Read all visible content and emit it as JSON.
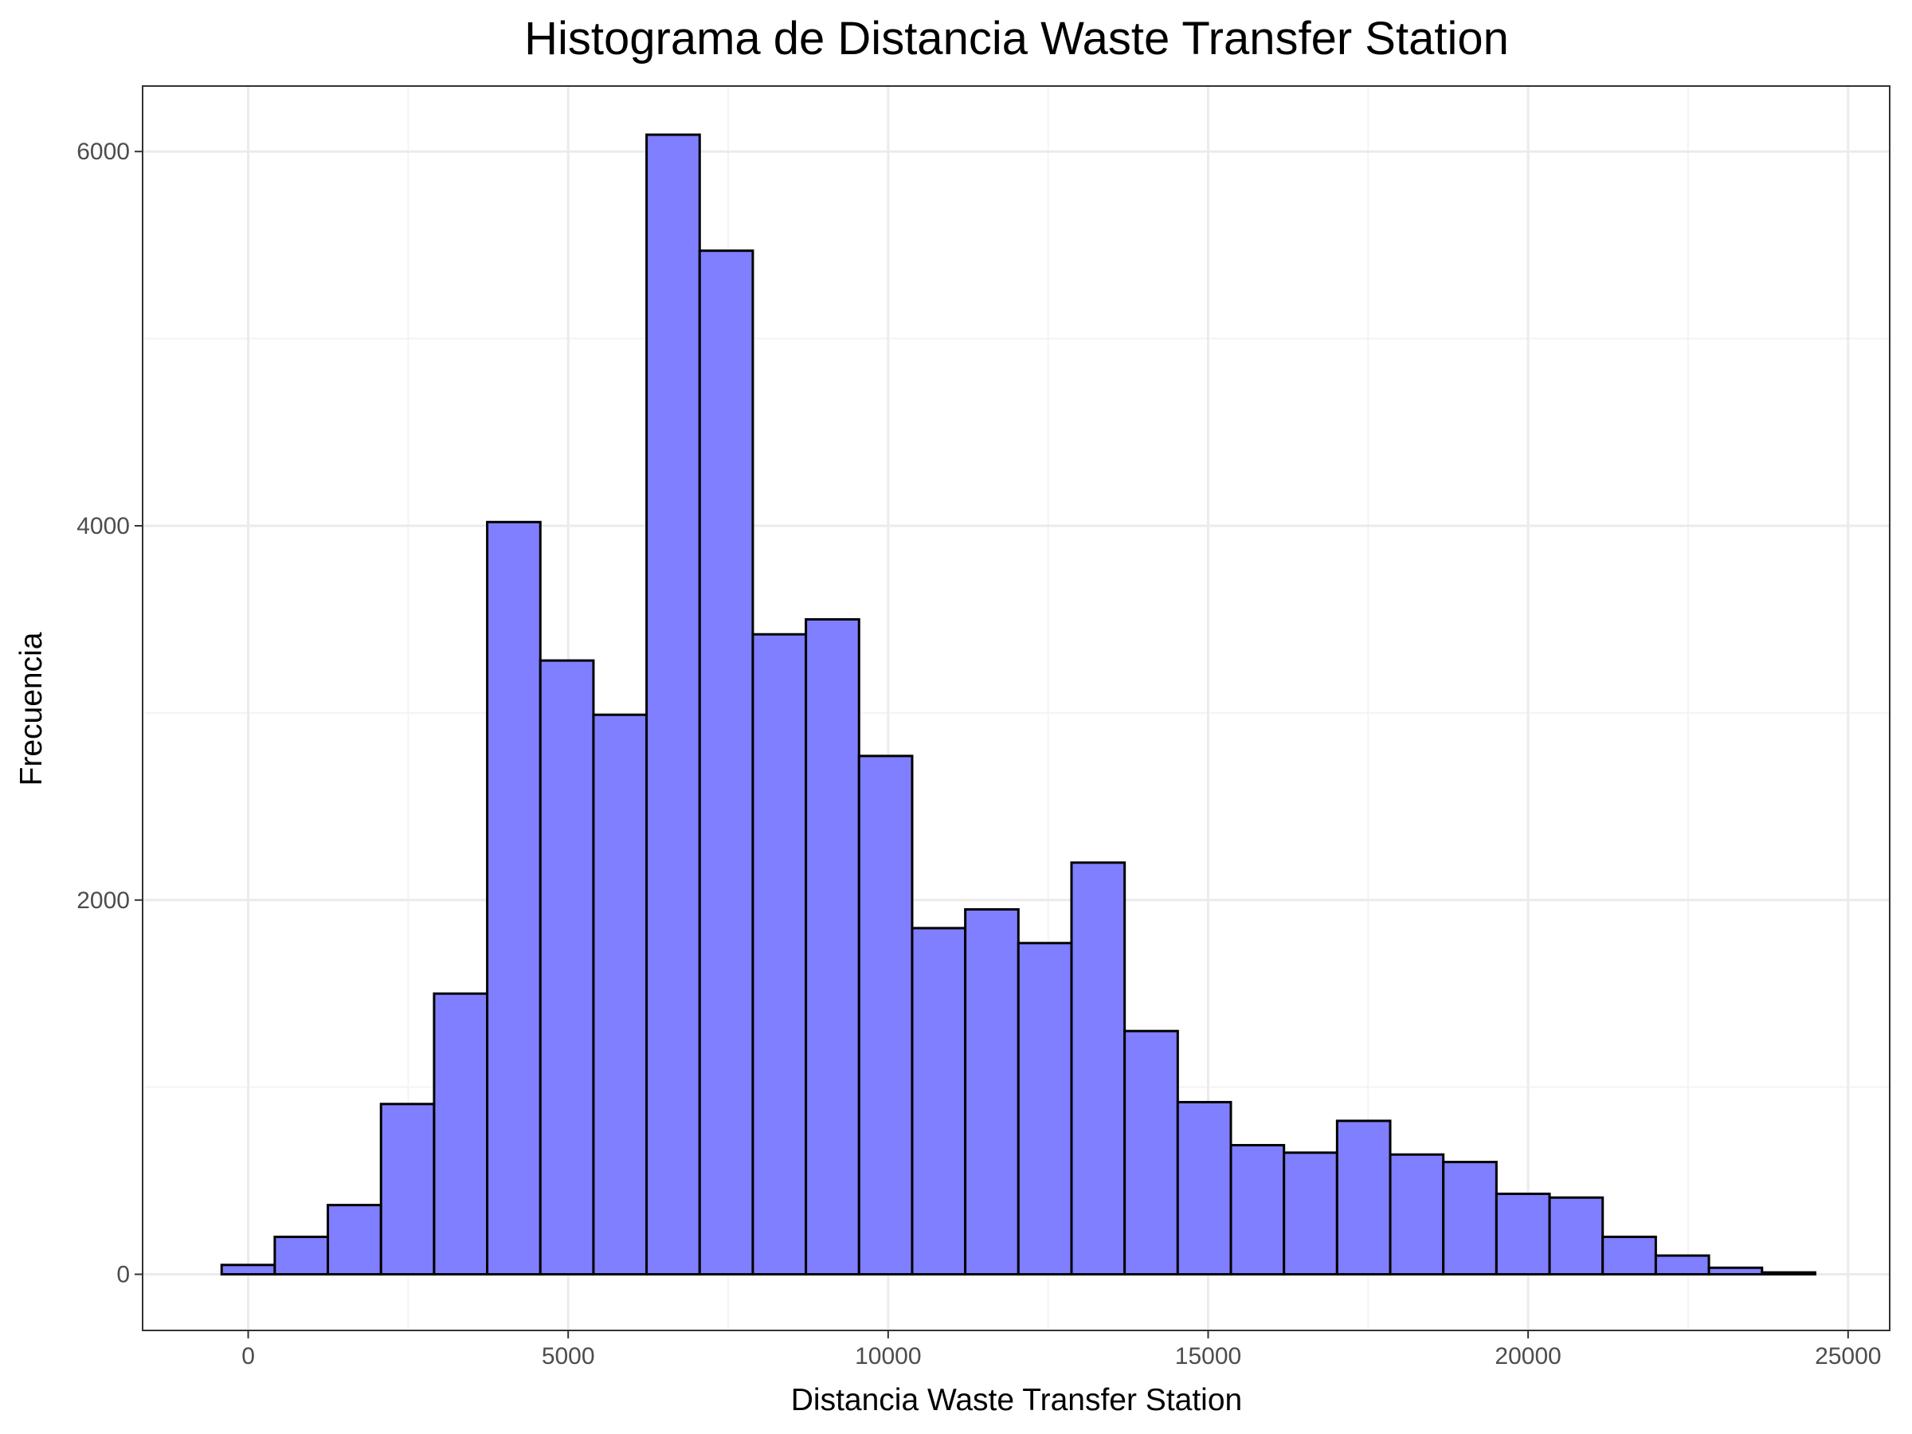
{
  "chart_data": {
    "type": "bar",
    "title": "Histograma de Distancia Waste Transfer Station",
    "xlabel": "Distancia Waste Transfer Station",
    "ylabel": "Frecuencia",
    "xlim": [
      -1650,
      25650
    ],
    "ylim": [
      -300,
      6350
    ],
    "x_ticks": [
      0,
      5000,
      10000,
      15000,
      20000,
      25000
    ],
    "x_tick_labels": [
      "0",
      "5000",
      "10000",
      "15000",
      "20000",
      "25000"
    ],
    "y_ticks": [
      0,
      2000,
      4000,
      6000
    ],
    "y_tick_labels": [
      "0",
      "2000",
      "4000",
      "6000"
    ],
    "grid": true,
    "bin_width": 830,
    "bin_centers": [
      0,
      830,
      1660,
      2490,
      3320,
      4150,
      4980,
      5810,
      6640,
      7470,
      8300,
      9130,
      9960,
      10790,
      11620,
      12450,
      13280,
      14110,
      14940,
      15770,
      16600,
      17430,
      18260,
      19090,
      19920,
      20750,
      21580,
      22410,
      23240,
      24070
    ],
    "values": [
      50,
      200,
      370,
      910,
      1500,
      4020,
      3280,
      2990,
      6090,
      5470,
      3420,
      3500,
      2770,
      1850,
      1950,
      1770,
      2200,
      1300,
      920,
      690,
      650,
      820,
      640,
      600,
      430,
      410,
      200,
      100,
      35,
      10
    ],
    "colors": {
      "bar_fill": "#7f7fff",
      "bar_stroke": "#000000",
      "grid_major": "#ebebeb",
      "grid_minor": "#f3f3f3",
      "panel_border": "#333333",
      "tick_text": "#4d4d4d"
    }
  }
}
